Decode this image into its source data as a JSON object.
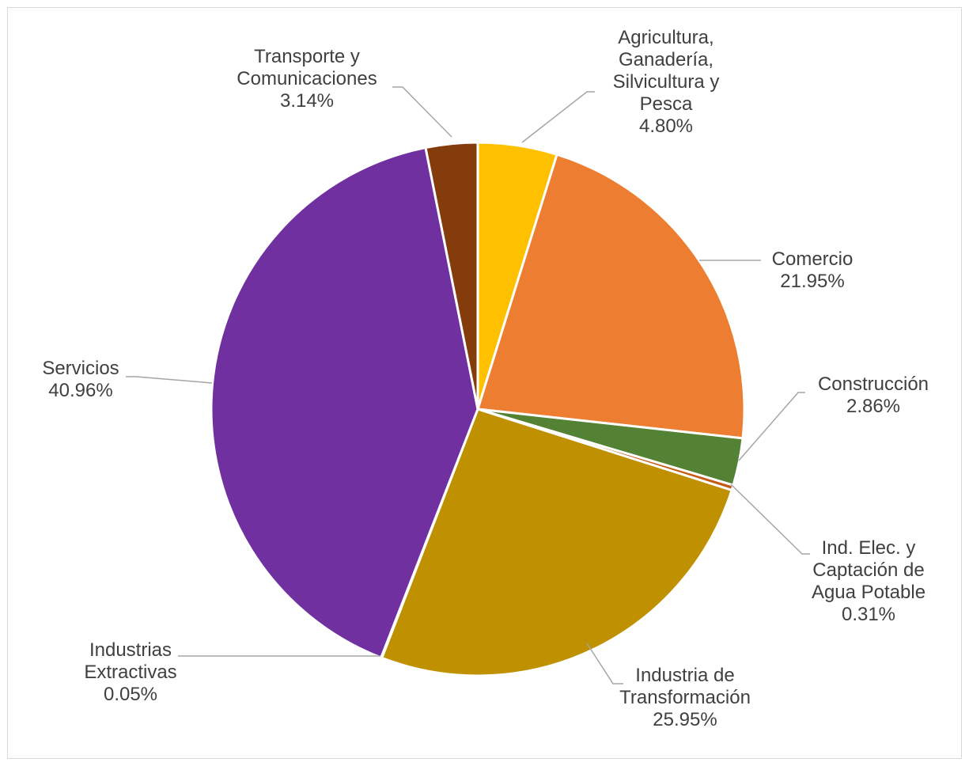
{
  "chart_data": {
    "type": "pie",
    "title": "",
    "slices": [
      {
        "label_lines": [
          "Agricultura,",
          "Ganadería,",
          "Silvicultura y",
          "Pesca"
        ],
        "value_label": "4.80%",
        "value": 4.8,
        "color": "#FFC000"
      },
      {
        "label_lines": [
          "Comercio"
        ],
        "value_label": "21.95%",
        "value": 21.95,
        "color": "#ED7D31"
      },
      {
        "label_lines": [
          "Construcción"
        ],
        "value_label": "2.86%",
        "value": 2.86,
        "color": "#548235"
      },
      {
        "label_lines": [
          "Ind. Elec. y",
          "Captación de",
          "Agua Potable"
        ],
        "value_label": "0.31%",
        "value": 0.31,
        "color": "#C55A11"
      },
      {
        "label_lines": [
          "Industria de",
          "Transformación"
        ],
        "value_label": "25.95%",
        "value": 25.95,
        "color": "#BF9000"
      },
      {
        "label_lines": [
          "Industrias",
          "Extractivas"
        ],
        "value_label": "0.05%",
        "value": 0.05,
        "color": "#2E75B6"
      },
      {
        "label_lines": [
          "Servicios"
        ],
        "value_label": "40.96%",
        "value": 40.96,
        "color": "#7030A0"
      },
      {
        "label_lines": [
          "Transporte y",
          "Comunicaciones"
        ],
        "value_label": "3.14%",
        "value": 3.14,
        "color": "#843C0C"
      }
    ],
    "start_angle": "12 o'clock",
    "direction": "clockwise",
    "legend": "none",
    "leader_line_color": "#A6A6A6"
  }
}
